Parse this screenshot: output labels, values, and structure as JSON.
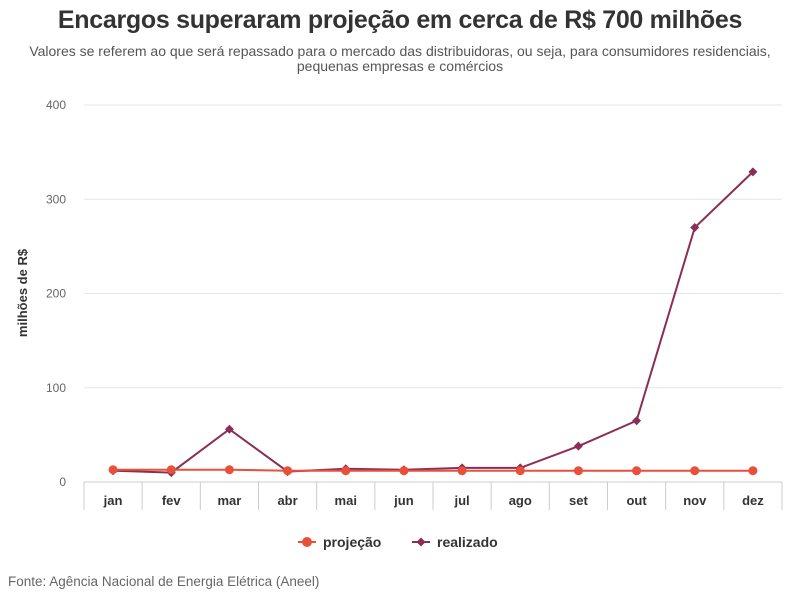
{
  "title": "Encargos superaram projeção em cerca de R$ 700 milhões",
  "subtitle": "Valores se referem ao que será repassado para o mercado das distribuidoras, ou seja, para consumidores residenciais, pequenas empresas e comércios",
  "source": "Fonte: Agência Nacional de Energia Elétrica (Aneel)",
  "colors": {
    "projecao": "#e8503a",
    "realizado": "#8b2e55",
    "grid": "#e6e6e6",
    "axis": "#cccccc"
  },
  "chart_data": {
    "type": "line",
    "title": "Encargos superaram projeção em cerca de R$ 700 milhões",
    "ylabel": "milhões de R$",
    "xlabel": "",
    "ylim": [
      0,
      400
    ],
    "yticks": [
      0,
      100,
      200,
      300,
      400
    ],
    "grid": true,
    "legend": "bottom-center",
    "categories": [
      "jan",
      "fev",
      "mar",
      "abr",
      "mai",
      "jun",
      "jul",
      "ago",
      "set",
      "out",
      "nov",
      "dez"
    ],
    "series": [
      {
        "name": "projeção",
        "marker": "circle",
        "values": [
          13,
          13,
          13,
          12,
          12,
          12,
          12,
          12,
          12,
          12,
          12,
          12
        ]
      },
      {
        "name": "realizado",
        "marker": "diamond",
        "values": [
          12,
          10,
          56,
          11,
          14,
          13,
          15,
          15,
          38,
          65,
          270,
          329
        ]
      }
    ]
  }
}
